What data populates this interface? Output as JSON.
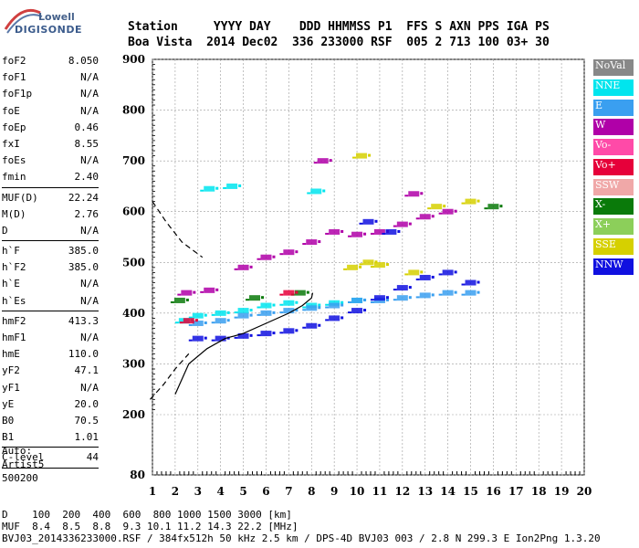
{
  "logo": {
    "line1": "Lowell",
    "line2": "DIGISONDE"
  },
  "header": {
    "row1": "Station     YYYY DAY    DDD HHMMSS P1  FFS S AXN PPS IGA PS",
    "row2": "Boa Vista  2014 Dec02  336 233000 RSF  005 2 713 100 03+ 30"
  },
  "params": [
    {
      "group": [
        {
          "k": "foF2",
          "v": "8.050"
        },
        {
          "k": "foF1",
          "v": "N/A"
        },
        {
          "k": "foF1p",
          "v": "N/A"
        },
        {
          "k": "foE",
          "v": "N/A"
        },
        {
          "k": "foEp",
          "v": "0.46"
        },
        {
          "k": "fxI",
          "v": "8.55"
        },
        {
          "k": "foEs",
          "v": "N/A"
        },
        {
          "k": "fmin",
          "v": "2.40"
        }
      ]
    },
    {
      "group": [
        {
          "k": "MUF(D)",
          "v": "22.24"
        },
        {
          "k": "M(D)",
          "v": "2.76"
        },
        {
          "k": "D",
          "v": "N/A"
        }
      ]
    },
    {
      "group": [
        {
          "k": "h`F",
          "v": "385.0"
        },
        {
          "k": "h`F2",
          "v": "385.0"
        },
        {
          "k": "h`E",
          "v": "N/A"
        },
        {
          "k": "h`Es",
          "v": "N/A"
        }
      ]
    },
    {
      "group": [
        {
          "k": "hmF2",
          "v": "413.3"
        },
        {
          "k": "hmF1",
          "v": "N/A"
        },
        {
          "k": "hmE",
          "v": "110.0"
        },
        {
          "k": "yF2",
          "v": "47.1"
        },
        {
          "k": "yF1",
          "v": "N/A"
        },
        {
          "k": "yE",
          "v": "20.0"
        },
        {
          "k": "B0",
          "v": "70.5"
        },
        {
          "k": "B1",
          "v": "1.01"
        }
      ]
    },
    {
      "group": [
        {
          "k": "C-level",
          "v": "44"
        }
      ]
    }
  ],
  "auto": {
    "l1": "Auto:",
    "l2": "Artist5",
    "l3": "500200"
  },
  "legend": [
    {
      "label": "NoVal",
      "color": "#888888"
    },
    {
      "label": "NNE",
      "color": "#00e5ee"
    },
    {
      "label": "E",
      "color": "#3a9ff0"
    },
    {
      "label": "W",
      "color": "#b000a8"
    },
    {
      "label": "Vo-",
      "color": "#ff4aa8"
    },
    {
      "label": "Vo+",
      "color": "#e6003a"
    },
    {
      "label": "SSW",
      "color": "#f0a8a8"
    },
    {
      "label": "X-",
      "color": "#0a7a0a"
    },
    {
      "label": "X+",
      "color": "#8ccf5a"
    },
    {
      "label": "SSE",
      "color": "#d6d000"
    },
    {
      "label": "NNW",
      "color": "#1010e0"
    }
  ],
  "footer": {
    "l1": "D    100  200  400  600  800 1000 1500 3000 [km]",
    "l2": "MUF  8.4  8.5  8.8  9.3 10.1 11.2 14.3 22.2 [MHz]",
    "l3": "BVJ03_2014336233000.RSF / 384fx512h 50 kHz 2.5 km / DPS-4D BVJ03 003 / 2.8 N 299.3 E Ion2Png 1.3.20"
  },
  "chart_data": {
    "type": "scatter",
    "xlim": [
      1,
      20
    ],
    "ylim": [
      80,
      900
    ],
    "xticks": [
      "1",
      "2",
      "3",
      "4",
      "5",
      "6",
      "7",
      "8",
      "9",
      "10",
      "11",
      "12",
      "13",
      "14",
      "15",
      "16",
      "17",
      "18",
      "19",
      "20"
    ],
    "yticks": [
      "80",
      "200",
      "300",
      "400",
      "500",
      "600",
      "700",
      "800",
      "900"
    ],
    "series": [
      {
        "name": "NNE",
        "color": "#00e5ee",
        "points": [
          [
            2.4,
            385
          ],
          [
            3,
            395
          ],
          [
            4,
            400
          ],
          [
            5,
            405
          ],
          [
            6,
            415
          ],
          [
            7,
            420
          ],
          [
            8,
            415
          ],
          [
            9,
            420
          ],
          [
            10,
            425
          ],
          [
            3.5,
            645
          ],
          [
            4.5,
            650
          ],
          [
            8.2,
            640
          ]
        ]
      },
      {
        "name": "E",
        "color": "#3a9ff0",
        "points": [
          [
            3,
            380
          ],
          [
            4,
            385
          ],
          [
            5,
            395
          ],
          [
            6,
            400
          ],
          [
            7,
            405
          ],
          [
            8,
            410
          ],
          [
            9,
            415
          ],
          [
            10,
            425
          ],
          [
            11,
            425
          ],
          [
            12,
            430
          ],
          [
            13,
            435
          ],
          [
            14,
            440
          ],
          [
            15,
            440
          ]
        ]
      },
      {
        "name": "W",
        "color": "#b000a8",
        "points": [
          [
            2.5,
            440
          ],
          [
            3.5,
            445
          ],
          [
            5,
            490
          ],
          [
            6,
            510
          ],
          [
            7,
            520
          ],
          [
            8,
            540
          ],
          [
            9,
            560
          ],
          [
            10,
            555
          ],
          [
            11,
            560
          ],
          [
            12,
            575
          ],
          [
            13,
            590
          ],
          [
            14,
            600
          ],
          [
            8.5,
            700
          ],
          [
            12.5,
            635
          ]
        ]
      },
      {
        "name": "NNW",
        "color": "#1010e0",
        "points": [
          [
            3,
            350
          ],
          [
            4,
            350
          ],
          [
            5,
            355
          ],
          [
            6,
            360
          ],
          [
            7,
            365
          ],
          [
            8,
            375
          ],
          [
            9,
            390
          ],
          [
            10,
            405
          ],
          [
            11,
            430
          ],
          [
            12,
            450
          ],
          [
            13,
            470
          ],
          [
            14,
            480
          ],
          [
            15,
            460
          ],
          [
            10.5,
            580
          ],
          [
            11.5,
            560
          ]
        ]
      },
      {
        "name": "SSE",
        "color": "#d6d000",
        "points": [
          [
            9.8,
            490
          ],
          [
            10.5,
            500
          ],
          [
            11,
            495
          ],
          [
            12.5,
            480
          ],
          [
            13.5,
            610
          ],
          [
            10.2,
            710
          ],
          [
            15,
            620
          ]
        ]
      },
      {
        "name": "X-",
        "color": "#0a7a0a",
        "points": [
          [
            2.2,
            425
          ],
          [
            5.5,
            430
          ],
          [
            7.5,
            440
          ],
          [
            16,
            610
          ]
        ]
      },
      {
        "name": "Vo+",
        "color": "#e6003a",
        "points": [
          [
            7,
            440
          ],
          [
            2.6,
            385
          ]
        ]
      }
    ],
    "trace_solid": [
      [
        2,
        240
      ],
      [
        2.6,
        300
      ],
      [
        3.4,
        330
      ],
      [
        4.2,
        350
      ],
      [
        5,
        360
      ],
      [
        6,
        380
      ],
      [
        7,
        400
      ],
      [
        7.6,
        415
      ],
      [
        8,
        430
      ],
      [
        8.05,
        440
      ]
    ],
    "trace_dashed_lower": [
      [
        0.9,
        230
      ],
      [
        1.5,
        260
      ],
      [
        2,
        290
      ],
      [
        2.6,
        320
      ]
    ],
    "trace_dashed_upper": [
      [
        1,
        620
      ],
      [
        1.6,
        580
      ],
      [
        2.3,
        540
      ],
      [
        3.2,
        510
      ]
    ]
  }
}
